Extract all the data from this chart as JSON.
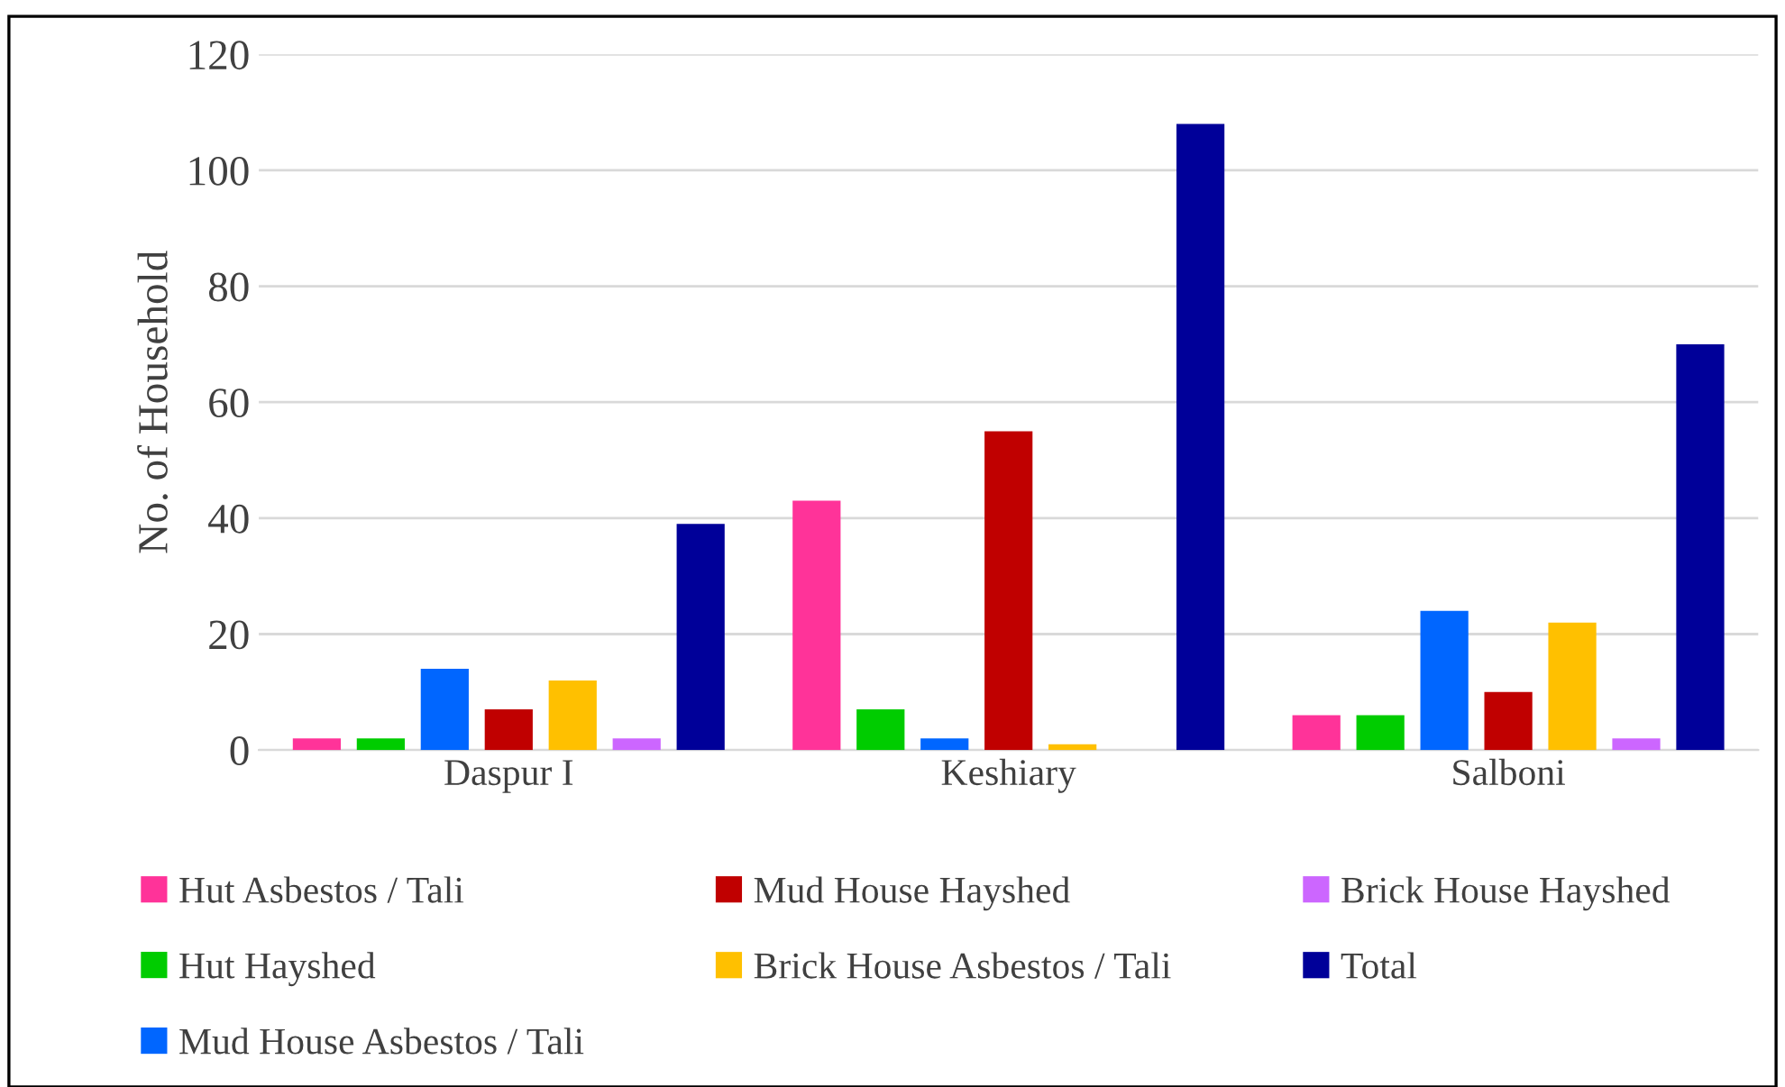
{
  "chart_data": {
    "type": "bar",
    "ylabel": "No. of Household",
    "categories": [
      "Daspur I",
      "Keshiary",
      "Salboni"
    ],
    "series": [
      {
        "name": "Hut Asbestos / Tali",
        "color": "#ff3399",
        "values": [
          2,
          43,
          6
        ]
      },
      {
        "name": "Hut Hayshed",
        "color": "#00cc00",
        "values": [
          2,
          7,
          6
        ]
      },
      {
        "name": "Mud House Asbestos / Tali",
        "color": "#0066ff",
        "values": [
          14,
          2,
          24
        ]
      },
      {
        "name": "Mud House Hayshed",
        "color": "#c00000",
        "values": [
          7,
          55,
          10
        ]
      },
      {
        "name": "Brick House Asbestos / Tali",
        "color": "#ffc000",
        "values": [
          12,
          1,
          22
        ]
      },
      {
        "name": "Brick House Hayshed",
        "color": "#cc66ff",
        "values": [
          2,
          0,
          2
        ]
      },
      {
        "name": "Total",
        "color": "#000099",
        "values": [
          39,
          108,
          70
        ]
      }
    ],
    "ylim": [
      0,
      120
    ],
    "yticks": [
      0,
      20,
      40,
      60,
      80,
      100,
      120
    ],
    "grid": "y",
    "legend": "bottom"
  }
}
